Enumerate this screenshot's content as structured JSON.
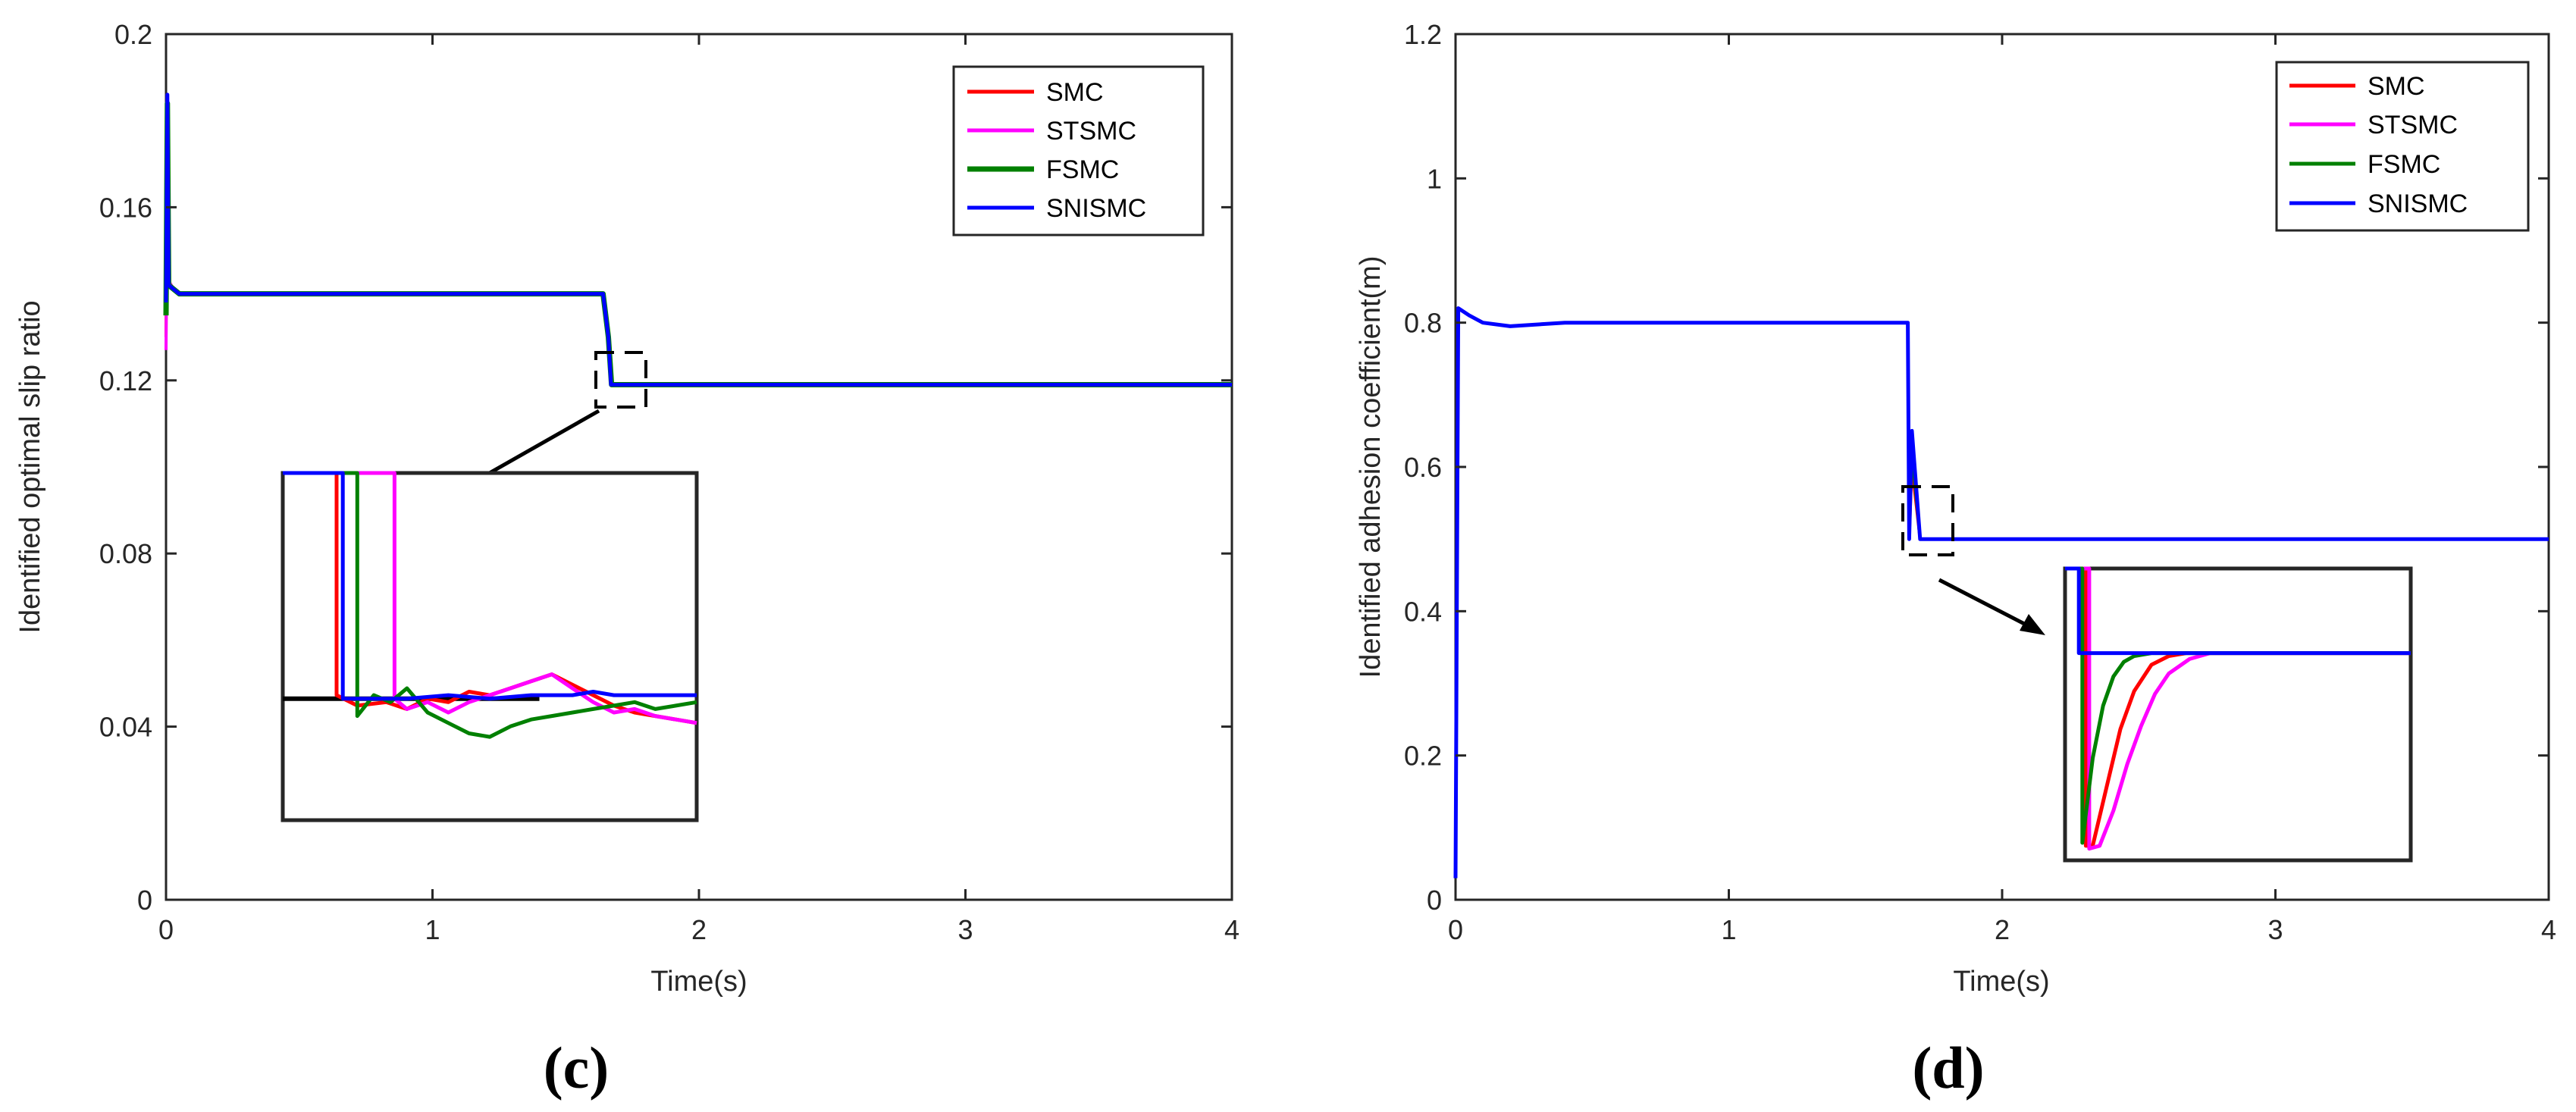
{
  "colors": {
    "SMC": "#ff0000",
    "STSMC": "#ff00ff",
    "FSMC": "#008000",
    "SNISMC": "#0000ff",
    "reference": "#000000"
  },
  "chart_data": [
    {
      "panel_label": "(c)",
      "type": "line",
      "xlabel": "Time(s)",
      "ylabel": "Identified optimal slip ratio",
      "xlim": [
        0,
        4
      ],
      "ylim": [
        0,
        0.2
      ],
      "xticks": [
        0,
        1,
        2,
        3,
        4
      ],
      "yticks": [
        0,
        0.04,
        0.08,
        0.12,
        0.16,
        0.2
      ],
      "xticklabels": [
        "0",
        "1",
        "2",
        "3",
        "4"
      ],
      "yticklabels": [
        "0",
        "0.04",
        "0.08",
        "0.12",
        "0.16",
        "0.2"
      ],
      "grid": false,
      "legend_position": "top-right",
      "series": [
        {
          "name": "SMC",
          "x": [
            0,
            0.005,
            0.01,
            0.03,
            0.05,
            0.1,
            0.3,
            1.64,
            1.66,
            1.67,
            1.7,
            4
          ],
          "y": [
            0.13,
            0.182,
            0.142,
            0.141,
            0.14,
            0.14,
            0.14,
            0.14,
            0.13,
            0.119,
            0.119,
            0.119
          ]
        },
        {
          "name": "STSMC",
          "x": [
            0,
            0.005,
            0.01,
            0.03,
            0.05,
            0.1,
            0.3,
            1.64,
            1.66,
            1.675,
            1.7,
            4
          ],
          "y": [
            0.127,
            0.176,
            0.143,
            0.141,
            0.14,
            0.14,
            0.14,
            0.14,
            0.13,
            0.119,
            0.119,
            0.119
          ]
        },
        {
          "name": "FSMC",
          "x": [
            0,
            0.005,
            0.01,
            0.03,
            0.05,
            0.1,
            0.3,
            1.64,
            1.66,
            1.672,
            1.7,
            4
          ],
          "y": [
            0.135,
            0.184,
            0.142,
            0.141,
            0.14,
            0.14,
            0.14,
            0.14,
            0.13,
            0.119,
            0.119,
            0.119
          ]
        },
        {
          "name": "SNISMC",
          "x": [
            0,
            0.005,
            0.01,
            0.03,
            0.05,
            0.1,
            0.3,
            1.64,
            1.66,
            1.67,
            1.7,
            4
          ],
          "y": [
            0.138,
            0.186,
            0.142,
            0.141,
            0.14,
            0.14,
            0.14,
            0.14,
            0.13,
            0.119,
            0.119,
            0.119
          ]
        }
      ],
      "inset": {
        "reference_level": 0.35,
        "series": [
          {
            "name": "SMC",
            "x": [
              0.0,
              0.13,
              0.13,
              0.18,
              0.25,
              0.3,
              0.35,
              0.4,
              0.45,
              0.5,
              0.55,
              0.6,
              0.65,
              0.7,
              0.75,
              0.8,
              0.85,
              0.9,
              0.95,
              1.0
            ],
            "y": [
              1.0,
              1.0,
              0.36,
              0.33,
              0.34,
              0.32,
              0.35,
              0.34,
              0.37,
              0.36,
              0.38,
              0.4,
              0.42,
              0.39,
              0.36,
              0.33,
              0.31,
              0.3,
              0.29,
              0.28
            ]
          },
          {
            "name": "STSMC",
            "x": [
              0.0,
              0.27,
              0.27,
              0.3,
              0.35,
              0.4,
              0.45,
              0.5,
              0.55,
              0.6,
              0.65,
              0.7,
              0.75,
              0.8,
              0.85,
              0.9,
              0.95,
              1.0
            ],
            "y": [
              1.0,
              1.0,
              0.35,
              0.32,
              0.34,
              0.31,
              0.34,
              0.36,
              0.38,
              0.4,
              0.42,
              0.38,
              0.34,
              0.31,
              0.32,
              0.3,
              0.29,
              0.28
            ]
          },
          {
            "name": "FSMC",
            "x": [
              0.0,
              0.18,
              0.18,
              0.22,
              0.26,
              0.3,
              0.35,
              0.4,
              0.45,
              0.5,
              0.55,
              0.6,
              0.65,
              0.7,
              0.75,
              0.8,
              0.85,
              0.9,
              0.95,
              1.0
            ],
            "y": [
              1.0,
              1.0,
              0.3,
              0.36,
              0.34,
              0.38,
              0.31,
              0.28,
              0.25,
              0.24,
              0.27,
              0.29,
              0.3,
              0.31,
              0.32,
              0.33,
              0.34,
              0.32,
              0.33,
              0.34
            ]
          },
          {
            "name": "SNISMC",
            "x": [
              0.0,
              0.145,
              0.145,
              0.2,
              0.3,
              0.4,
              0.5,
              0.6,
              0.7,
              0.75,
              0.8,
              0.9,
              1.0
            ],
            "y": [
              1.0,
              1.0,
              0.35,
              0.35,
              0.35,
              0.36,
              0.35,
              0.36,
              0.36,
              0.37,
              0.36,
              0.36,
              0.36
            ]
          }
        ]
      }
    },
    {
      "panel_label": "(d)",
      "type": "line",
      "xlabel": "Time(s)",
      "ylabel": "Identified adhesion coefficient(m)",
      "xlim": [
        0,
        4
      ],
      "ylim": [
        0,
        1.2
      ],
      "xticks": [
        0,
        1,
        2,
        3,
        4
      ],
      "yticks": [
        0,
        0.2,
        0.4,
        0.6,
        0.8,
        1,
        1.2
      ],
      "xticklabels": [
        "0",
        "1",
        "2",
        "3",
        "4"
      ],
      "yticklabels": [
        "0",
        "0.2",
        "0.4",
        "0.6",
        "0.8",
        "1",
        "1.2"
      ],
      "grid": false,
      "legend_position": "top-right",
      "series": [
        {
          "name": "SMC",
          "x": [
            0,
            0.01,
            0.05,
            0.1,
            0.2,
            0.4,
            1.64,
            1.655,
            1.66,
            1.67,
            1.7,
            4
          ],
          "y": [
            0.03,
            0.82,
            0.81,
            0.8,
            0.795,
            0.8,
            0.8,
            0.8,
            0.5,
            0.6,
            0.5,
            0.5
          ]
        },
        {
          "name": "STSMC",
          "x": [
            0,
            0.01,
            0.05,
            0.1,
            0.2,
            0.4,
            1.64,
            1.655,
            1.66,
            1.67,
            1.7,
            4
          ],
          "y": [
            0.03,
            0.82,
            0.81,
            0.8,
            0.795,
            0.8,
            0.8,
            0.8,
            0.5,
            0.64,
            0.5,
            0.5
          ]
        },
        {
          "name": "FSMC",
          "x": [
            0,
            0.01,
            0.05,
            0.1,
            0.2,
            0.4,
            1.64,
            1.655,
            1.66,
            1.67,
            1.7,
            4
          ],
          "y": [
            0.03,
            0.82,
            0.81,
            0.8,
            0.795,
            0.8,
            0.8,
            0.8,
            0.5,
            0.62,
            0.5,
            0.5
          ]
        },
        {
          "name": "SNISMC",
          "x": [
            0,
            0.01,
            0.05,
            0.1,
            0.2,
            0.4,
            1.64,
            1.655,
            1.66,
            1.67,
            1.7,
            4
          ],
          "y": [
            0.03,
            0.82,
            0.81,
            0.8,
            0.795,
            0.8,
            0.8,
            0.8,
            0.5,
            0.65,
            0.5,
            0.5
          ]
        }
      ],
      "inset": {
        "series": [
          {
            "name": "SMC",
            "x": [
              0.0,
              0.06,
              0.06,
              0.08,
              0.12,
              0.16,
              0.2,
              0.25,
              0.3,
              0.35,
              0.4,
              1.0
            ],
            "y": [
              1.0,
              1.0,
              0.05,
              0.05,
              0.25,
              0.45,
              0.58,
              0.67,
              0.7,
              0.71,
              0.71,
              0.71
            ]
          },
          {
            "name": "STSMC",
            "x": [
              0.0,
              0.07,
              0.07,
              0.1,
              0.14,
              0.18,
              0.22,
              0.26,
              0.3,
              0.36,
              0.42,
              0.5,
              1.0
            ],
            "y": [
              1.0,
              1.0,
              0.04,
              0.05,
              0.17,
              0.33,
              0.46,
              0.57,
              0.64,
              0.69,
              0.71,
              0.71,
              0.71
            ]
          },
          {
            "name": "FSMC",
            "x": [
              0.0,
              0.05,
              0.05,
              0.08,
              0.11,
              0.14,
              0.17,
              0.2,
              0.25,
              1.0
            ],
            "y": [
              1.0,
              1.0,
              0.06,
              0.35,
              0.53,
              0.63,
              0.68,
              0.7,
              0.71,
              0.71
            ]
          },
          {
            "name": "SNISMC",
            "x": [
              0.0,
              0.04,
              0.04,
              1.0
            ],
            "y": [
              1.0,
              1.0,
              0.71,
              0.71
            ]
          }
        ]
      }
    }
  ]
}
